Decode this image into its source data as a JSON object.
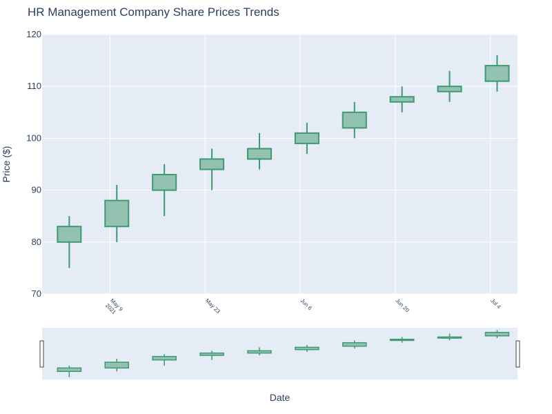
{
  "chart_data": {
    "type": "candlestick",
    "title": "HR Management Company Share Prices Trends",
    "xlabel": "Date",
    "ylabel": "Price ($)",
    "ylim": [
      70,
      120
    ],
    "yticks": [
      70,
      80,
      90,
      100,
      110,
      120
    ],
    "xticks": [
      {
        "date": "2021-05-09",
        "label": [
          "May 9",
          "2021"
        ]
      },
      {
        "date": "2021-05-23",
        "label": [
          "May 23"
        ]
      },
      {
        "date": "2021-06-06",
        "label": [
          "Jun 6"
        ]
      },
      {
        "date": "2021-06-20",
        "label": [
          "Jun 20"
        ]
      },
      {
        "date": "2021-07-04",
        "label": [
          "Jul 4"
        ]
      }
    ],
    "xrange": [
      "2021-04-29",
      "2021-07-08"
    ],
    "series": [
      {
        "date": "2021-05-03",
        "open": 80,
        "high": 85,
        "low": 75,
        "close": 83
      },
      {
        "date": "2021-05-10",
        "open": 83,
        "high": 91,
        "low": 80,
        "close": 88
      },
      {
        "date": "2021-05-17",
        "open": 90,
        "high": 95,
        "low": 85,
        "close": 93
      },
      {
        "date": "2021-05-24",
        "open": 94,
        "high": 98,
        "low": 90,
        "close": 96
      },
      {
        "date": "2021-05-31",
        "open": 96,
        "high": 101,
        "low": 94,
        "close": 98
      },
      {
        "date": "2021-06-07",
        "open": 99,
        "high": 103,
        "low": 97,
        "close": 101
      },
      {
        "date": "2021-06-14",
        "open": 102,
        "high": 107,
        "low": 100,
        "close": 105
      },
      {
        "date": "2021-06-21",
        "open": 107,
        "high": 110,
        "low": 105,
        "close": 108
      },
      {
        "date": "2021-06-28",
        "open": 109,
        "high": 113,
        "low": 107,
        "close": 110
      },
      {
        "date": "2021-07-05",
        "open": 111,
        "high": 116,
        "low": 109,
        "close": 114
      }
    ],
    "colors": {
      "increasing_line": "#3d9970",
      "increasing_fill": "#93c2b2",
      "plot_bg": "#e5ecf6",
      "grid": "#ffffff",
      "text": "#2a3f5f"
    },
    "rangeslider": true
  }
}
